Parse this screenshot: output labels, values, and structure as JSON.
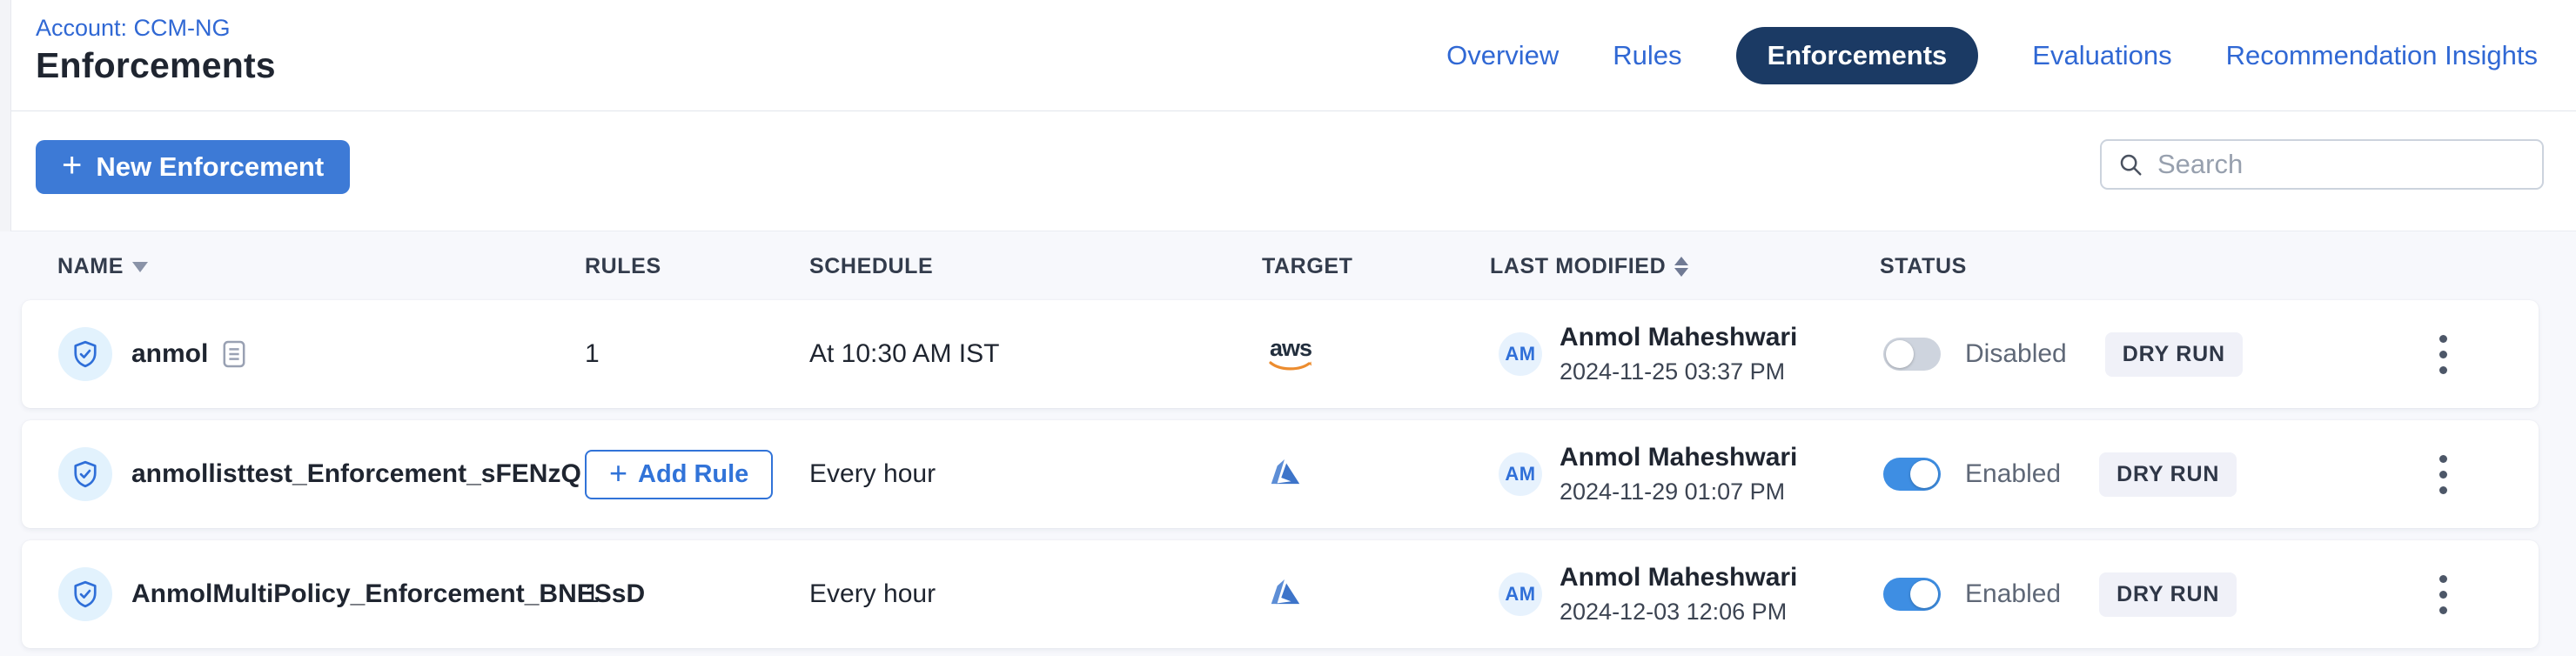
{
  "header": {
    "account_label": "Account: CCM-NG",
    "page_title": "Enforcements",
    "tabs": [
      {
        "label": "Overview",
        "active": false
      },
      {
        "label": "Rules",
        "active": false
      },
      {
        "label": "Enforcements",
        "active": true
      },
      {
        "label": "Evaluations",
        "active": false
      },
      {
        "label": "Recommendation Insights",
        "active": false
      }
    ]
  },
  "toolbar": {
    "new_enforcement_label": "New Enforcement",
    "plus_glyph": "+",
    "search": {
      "placeholder": "Search",
      "value": ""
    }
  },
  "table": {
    "columns": {
      "name": "NAME",
      "rules": "RULES",
      "schedule": "SCHEDULE",
      "target": "TARGET",
      "last_modified": "LAST MODIFIED",
      "status": "STATUS"
    },
    "rows": [
      {
        "name": "anmol",
        "has_note_icon": true,
        "rules": "1",
        "add_rule_label": "",
        "schedule": "At 10:30 AM IST",
        "target": "aws",
        "target_is_aws": true,
        "target_is_azure": false,
        "modified_initials": "AM",
        "modified_by": "Anmol Maheshwari",
        "modified_at": "2024-11-25 03:37 PM",
        "status_enabled": false,
        "status_label": "Disabled",
        "badge": "DRY RUN"
      },
      {
        "name": "anmollisttest_Enforcement_sFENzQ",
        "has_note_icon": false,
        "rules": "",
        "add_rule_label": "Add Rule",
        "schedule": "Every hour",
        "target": "azure",
        "target_is_aws": false,
        "target_is_azure": true,
        "modified_initials": "AM",
        "modified_by": "Anmol Maheshwari",
        "modified_at": "2024-11-29 01:07 PM",
        "status_enabled": true,
        "status_label": "Enabled",
        "badge": "DRY RUN"
      },
      {
        "name": "AnmolMultiPolicy_Enforcement_BNESsD",
        "has_note_icon": false,
        "rules": "1",
        "add_rule_label": "",
        "schedule": "Every hour",
        "target": "azure",
        "target_is_aws": false,
        "target_is_azure": true,
        "modified_initials": "AM",
        "modified_by": "Anmol Maheshwari",
        "modified_at": "2024-12-03 12:06 PM",
        "status_enabled": true,
        "status_label": "Enabled",
        "badge": "DRY RUN"
      }
    ]
  },
  "icons": {
    "shield_check": "shield-check-icon",
    "note": "note-icon",
    "search": "search-icon",
    "sort_desc": "sort-desc-icon",
    "sort_both": "sort-toggle-icon",
    "kebab": "kebab-menu-icon",
    "aws": "aws-logo",
    "azure": "azure-logo"
  },
  "colors": {
    "accent_link": "#3068d4",
    "primary_button": "#3d7ad6",
    "active_tab": "#1b3a64",
    "toggle_on": "#3e8ee3",
    "aws_orange": "#ec8c2f",
    "azure_blue": "#3d74c9",
    "card_bg": "#ffffff",
    "page_bg": "#f7f8fc"
  }
}
